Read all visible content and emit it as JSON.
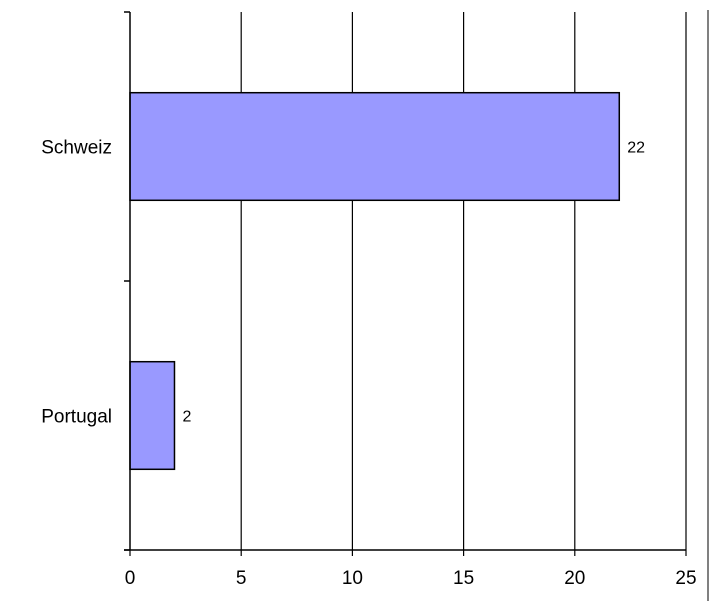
{
  "chart_data": {
    "type": "bar",
    "orientation": "horizontal",
    "categories": [
      "Schweiz",
      "Portugal"
    ],
    "values": [
      22,
      2
    ],
    "data_labels": [
      "22",
      "2"
    ],
    "x_ticks": [
      "0",
      "5",
      "10",
      "15",
      "20",
      "25"
    ],
    "xlim": [
      0,
      25
    ],
    "grid": true,
    "legend": "none",
    "colors": {
      "bar_fill": "#9999ff",
      "bar_stroke": "#000000",
      "grid": "#000000",
      "text": "#000000"
    }
  }
}
